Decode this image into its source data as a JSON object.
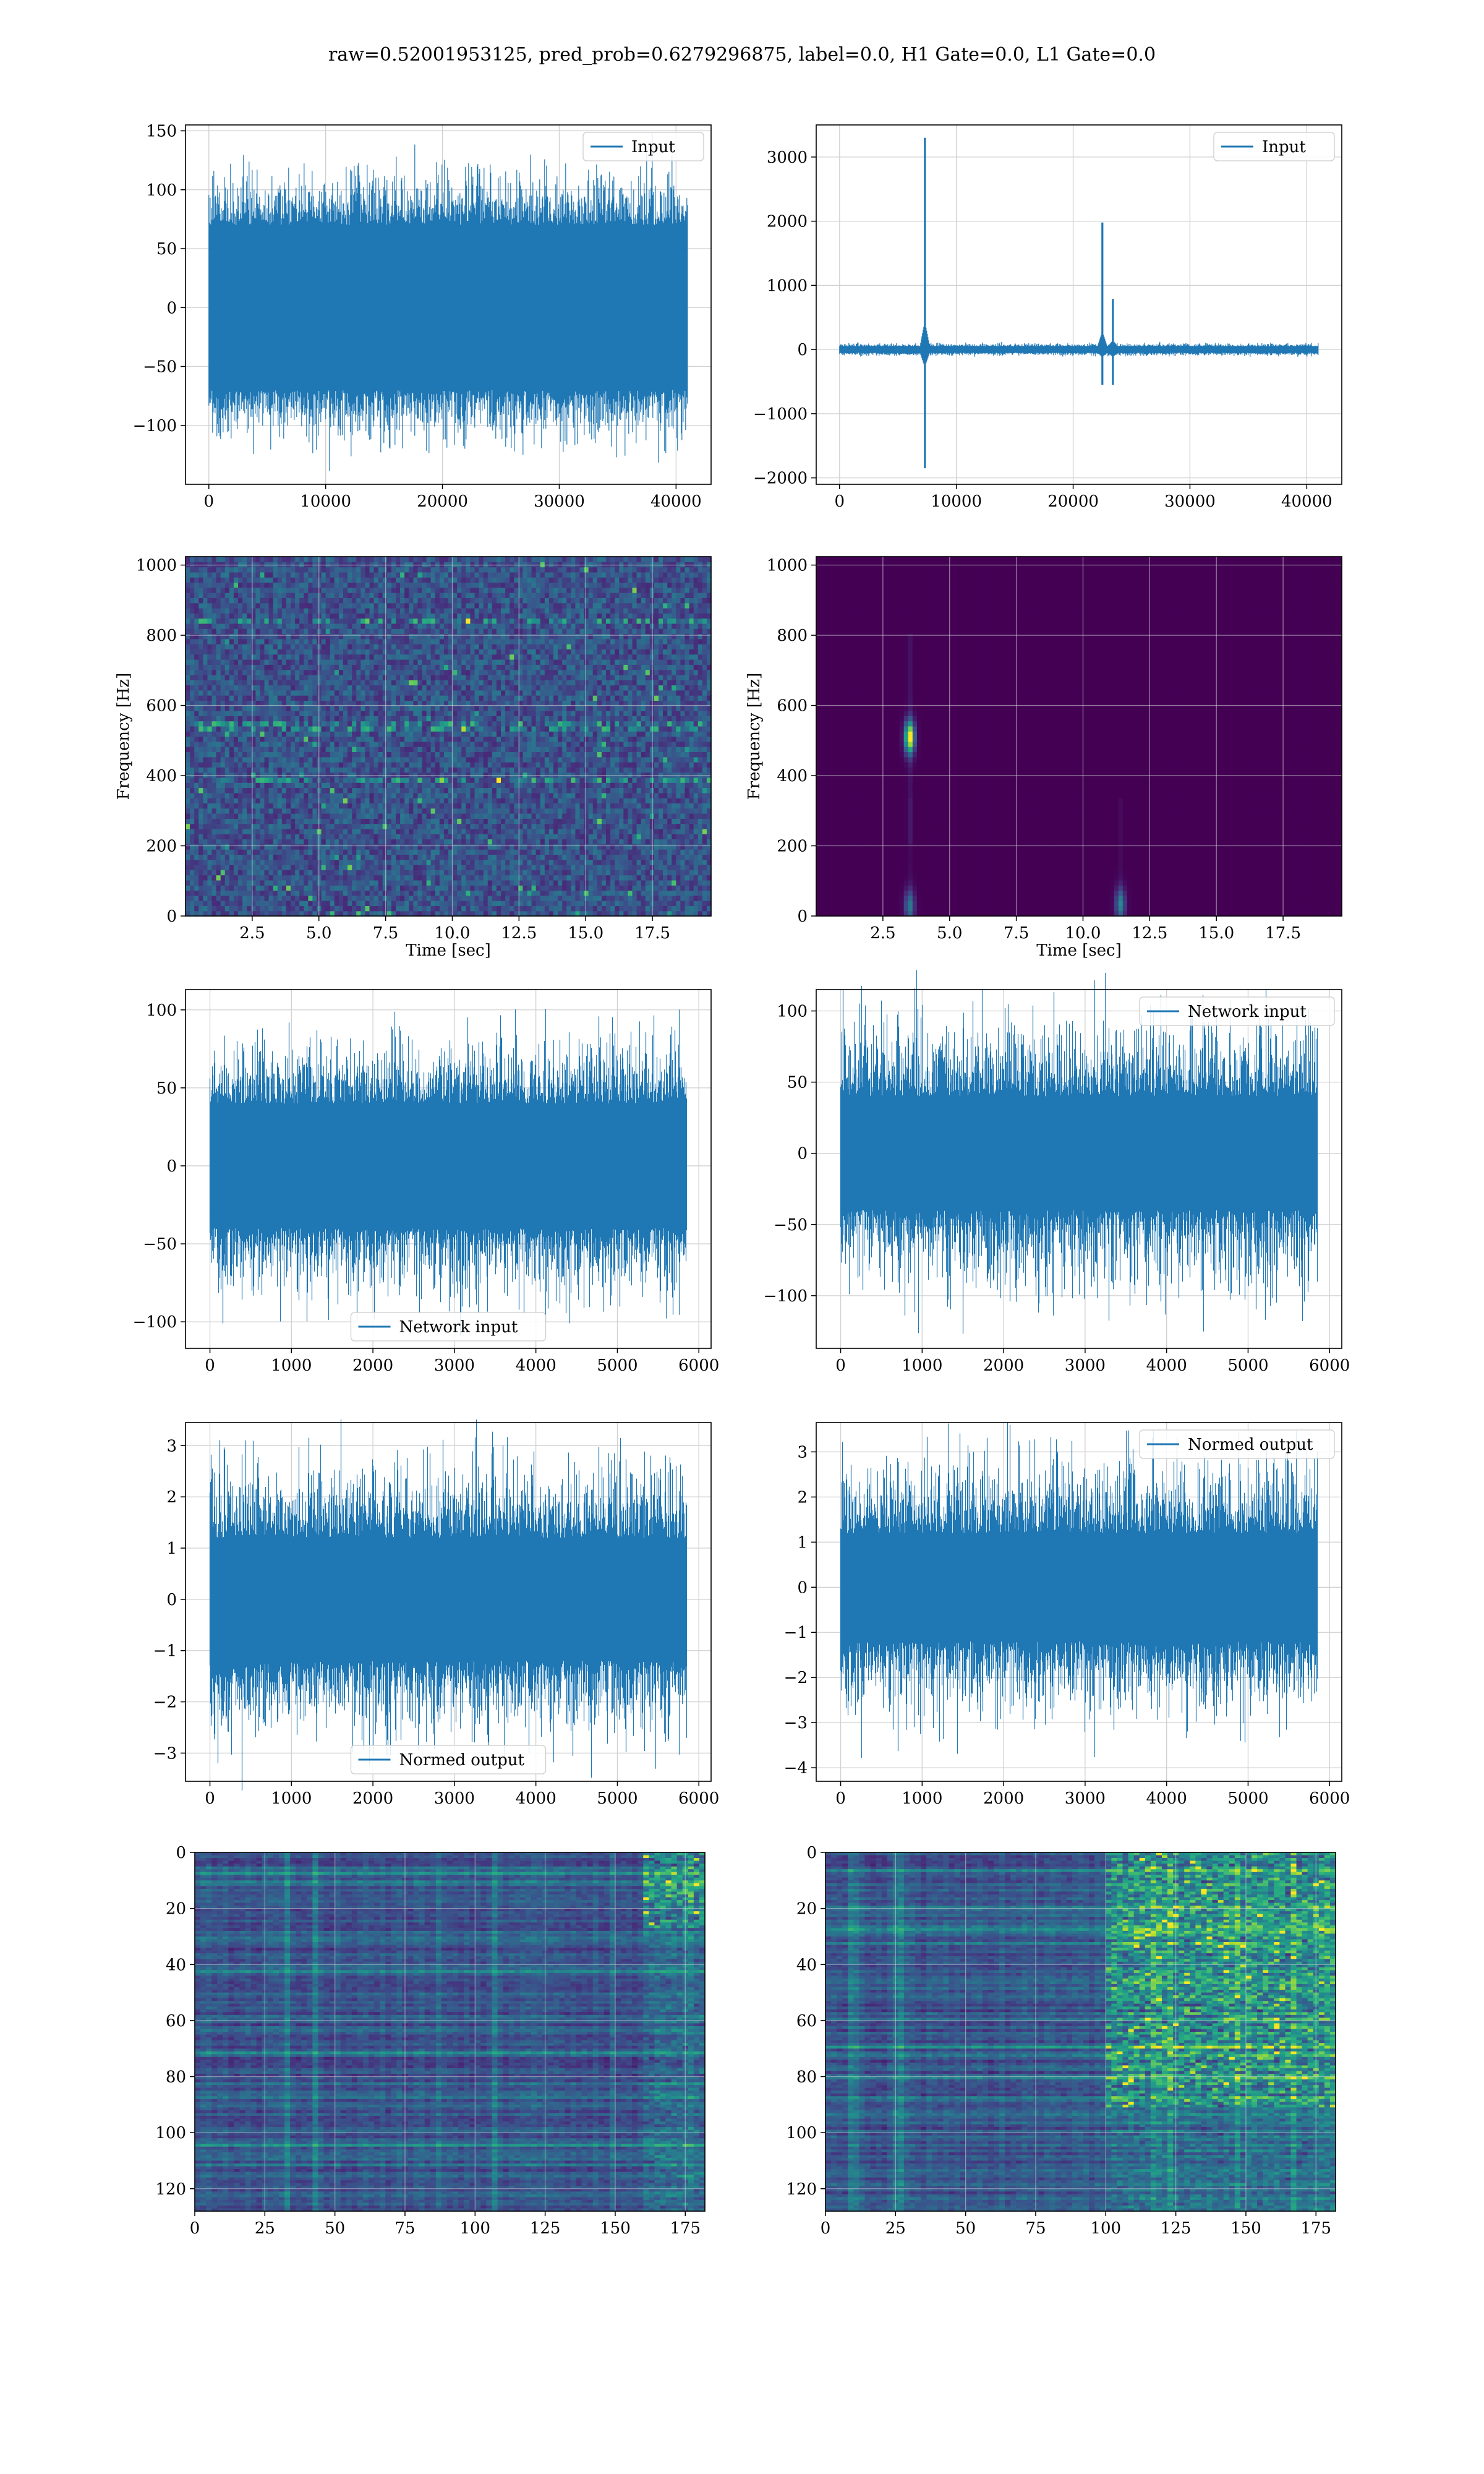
{
  "title": "raw=0.52001953125, pred_prob=0.6279296875, label=0.0, H1 Gate=0.0, L1 Gate=0.0",
  "colors": {
    "line": "#1f77b4",
    "viridis_low": "#440154",
    "viridis_high": "#fde725"
  },
  "chart_data": [
    {
      "id": "h1-input",
      "type": "line",
      "row": 1,
      "col": 1,
      "legend": "Input",
      "legend_loc": "upper right",
      "xlim": [
        -2000,
        43000
      ],
      "ylim": [
        -150,
        155
      ],
      "xticks": [
        0,
        10000,
        20000,
        30000,
        40000
      ],
      "yticks": [
        -100,
        -50,
        0,
        50,
        100,
        150
      ],
      "xticklabels": [
        "0",
        "10000",
        "20000",
        "30000",
        "40000"
      ],
      "yticklabels": [
        "−100",
        "−50",
        "0",
        "50",
        "100",
        "150"
      ],
      "x_range": [
        0,
        40960
      ],
      "band_amp": 70,
      "spike_amp": 130,
      "spikes": [],
      "grid": true
    },
    {
      "id": "l1-input",
      "type": "line",
      "row": 1,
      "col": 2,
      "legend": "Input",
      "legend_loc": "upper right",
      "xlim": [
        -2000,
        43000
      ],
      "ylim": [
        -2100,
        3500
      ],
      "xticks": [
        0,
        10000,
        20000,
        30000,
        40000
      ],
      "yticks": [
        -2000,
        -1000,
        0,
        1000,
        2000,
        3000
      ],
      "xticklabels": [
        "0",
        "10000",
        "20000",
        "30000",
        "40000"
      ],
      "yticklabels": [
        "−2000",
        "−1000",
        "0",
        "1000",
        "2000",
        "3000"
      ],
      "x_range": [
        0,
        40960
      ],
      "band_amp": 50,
      "spike_amp": 110,
      "spikes": [
        {
          "x": 7300,
          "max": 3300,
          "min": -1850
        },
        {
          "x": 22500,
          "max": 1980,
          "min": -550
        },
        {
          "x": 23400,
          "max": 790,
          "min": -550
        }
      ],
      "grid": true
    },
    {
      "id": "h1-spectrogram",
      "type": "heatmap",
      "row": 2,
      "col": 1,
      "xlim": [
        0,
        19.7
      ],
      "ylim": [
        0,
        1024
      ],
      "xticks": [
        2.5,
        5.0,
        7.5,
        10.0,
        12.5,
        15.0,
        17.5
      ],
      "yticks": [
        0,
        200,
        400,
        600,
        800,
        1000
      ],
      "xticklabels": [
        "2.5",
        "5.0",
        "7.5",
        "10.0",
        "12.5",
        "15.0",
        "17.5"
      ],
      "yticklabels": [
        "0",
        "200",
        "400",
        "600",
        "800",
        "1000"
      ],
      "xlabel": "Time [sec]",
      "ylabel": "Frequency [Hz]",
      "bright_lines_hz": [
        840,
        545,
        390
      ],
      "blobs": [],
      "grid": true
    },
    {
      "id": "l1-spectrogram",
      "type": "heatmap",
      "row": 2,
      "col": 2,
      "xlim": [
        0,
        19.7
      ],
      "ylim": [
        0,
        1024
      ],
      "xticks": [
        2.5,
        5.0,
        7.5,
        10.0,
        12.5,
        15.0,
        17.5
      ],
      "yticks": [
        0,
        200,
        400,
        600,
        800,
        1000
      ],
      "xticklabels": [
        "2.5",
        "5.0",
        "7.5",
        "10.0",
        "12.5",
        "15.0",
        "17.5"
      ],
      "yticklabels": [
        "0",
        "200",
        "400",
        "600",
        "800",
        "1000"
      ],
      "xlabel": "Time [sec]",
      "ylabel": "Frequency [Hz]",
      "bright_lines_hz": [],
      "blobs": [
        {
          "t": 3.5,
          "f": 510,
          "intensity": 1.0
        },
        {
          "t": 3.5,
          "f": 30,
          "intensity": 0.4
        },
        {
          "t": 11.4,
          "f": 35,
          "intensity": 0.45
        }
      ],
      "grid": true
    },
    {
      "id": "h1-network-input",
      "type": "line",
      "row": 3,
      "col": 1,
      "legend": "Network input",
      "legend_loc": "lower center",
      "xlim": [
        -300,
        6150
      ],
      "ylim": [
        -117,
        113
      ],
      "xticks": [
        0,
        1000,
        2000,
        3000,
        4000,
        5000,
        6000
      ],
      "yticks": [
        -100,
        -50,
        0,
        50,
        100
      ],
      "xticklabels": [
        "0",
        "1000",
        "2000",
        "3000",
        "4000",
        "5000",
        "6000"
      ],
      "yticklabels": [
        "−100",
        "−50",
        "0",
        "50",
        "100"
      ],
      "x_range": [
        0,
        5850
      ],
      "band_amp": 40,
      "spike_amp": 100,
      "spikes": [],
      "grid": true
    },
    {
      "id": "l1-network-input",
      "type": "line",
      "row": 3,
      "col": 2,
      "legend": "Network input",
      "legend_loc": "upper right",
      "xlim": [
        -300,
        6150
      ],
      "ylim": [
        -137,
        115
      ],
      "xticks": [
        0,
        1000,
        2000,
        3000,
        4000,
        5000,
        6000
      ],
      "yticks": [
        -100,
        -50,
        0,
        50,
        100
      ],
      "xticklabels": [
        "0",
        "1000",
        "2000",
        "3000",
        "4000",
        "5000",
        "6000"
      ],
      "yticklabels": [
        "−100",
        "−50",
        "0",
        "50",
        "100"
      ],
      "x_range": [
        0,
        5850
      ],
      "band_amp": 40,
      "spike_amp": 115,
      "spikes": [],
      "grid": true
    },
    {
      "id": "h1-normed-output",
      "type": "line",
      "row": 4,
      "col": 1,
      "legend": "Normed output",
      "legend_loc": "lower center",
      "xlim": [
        -300,
        6150
      ],
      "ylim": [
        -3.55,
        3.45
      ],
      "xticks": [
        0,
        1000,
        2000,
        3000,
        4000,
        5000,
        6000
      ],
      "yticks": [
        -3,
        -2,
        -1,
        0,
        1,
        2,
        3
      ],
      "xticklabels": [
        "0",
        "1000",
        "2000",
        "3000",
        "4000",
        "5000",
        "6000"
      ],
      "yticklabels": [
        "−3",
        "−2",
        "−1",
        "0",
        "1",
        "2",
        "3"
      ],
      "x_range": [
        0,
        5850
      ],
      "band_amp": 1.2,
      "spike_amp": 3.2,
      "spikes": [],
      "grid": true
    },
    {
      "id": "l1-normed-output",
      "type": "line",
      "row": 4,
      "col": 2,
      "legend": "Normed output",
      "legend_loc": "upper right",
      "xlim": [
        -300,
        6150
      ],
      "ylim": [
        -4.3,
        3.65
      ],
      "xticks": [
        0,
        1000,
        2000,
        3000,
        4000,
        5000,
        6000
      ],
      "yticks": [
        -4,
        -3,
        -2,
        -1,
        0,
        1,
        2,
        3
      ],
      "xticklabels": [
        "0",
        "1000",
        "2000",
        "3000",
        "4000",
        "5000",
        "6000"
      ],
      "yticklabels": [
        "−4",
        "−3",
        "−2",
        "−1",
        "0",
        "1",
        "2",
        "3"
      ],
      "x_range": [
        0,
        5850
      ],
      "band_amp": 1.2,
      "spike_amp": 3.5,
      "spikes": [],
      "grid": true
    },
    {
      "id": "h1-feature-map",
      "type": "heatmap",
      "row": 5,
      "col": 1,
      "xlim": [
        0,
        182
      ],
      "ylim": [
        128,
        0
      ],
      "xticks": [
        0,
        25,
        50,
        75,
        100,
        125,
        150,
        175
      ],
      "yticks": [
        0,
        20,
        40,
        60,
        80,
        100,
        120
      ],
      "xticklabels": [
        "0",
        "25",
        "50",
        "75",
        "100",
        "125",
        "150",
        "175"
      ],
      "yticklabels": [
        "0",
        "20",
        "40",
        "60",
        "80",
        "100",
        "120"
      ],
      "bright_region": {
        "x_start": 160,
        "x_end": 182,
        "rows": [
          0,
          26
        ]
      },
      "grid": true
    },
    {
      "id": "l1-feature-map",
      "type": "heatmap",
      "row": 5,
      "col": 2,
      "xlim": [
        0,
        182
      ],
      "ylim": [
        128,
        0
      ],
      "xticks": [
        0,
        25,
        50,
        75,
        100,
        125,
        150,
        175
      ],
      "yticks": [
        0,
        20,
        40,
        60,
        80,
        100,
        120
      ],
      "xticklabels": [
        "0",
        "25",
        "50",
        "75",
        "100",
        "125",
        "150",
        "175"
      ],
      "yticklabels": [
        "0",
        "20",
        "40",
        "60",
        "80",
        "100",
        "120"
      ],
      "bright_region": {
        "x_start": 100,
        "x_end": 182,
        "rows": [
          0,
          90
        ]
      },
      "grid": true
    }
  ]
}
